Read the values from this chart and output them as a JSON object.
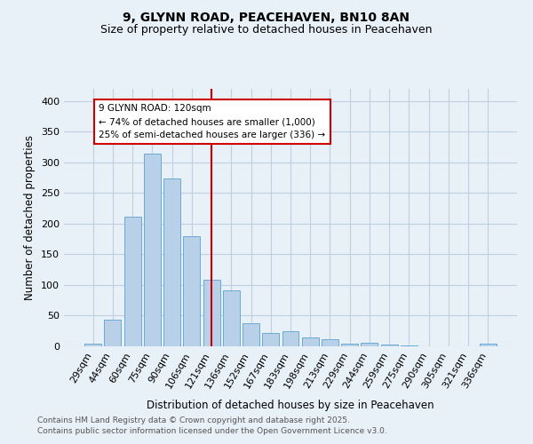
{
  "title": "9, GLYNN ROAD, PEACEHAVEN, BN10 8AN",
  "subtitle": "Size of property relative to detached houses in Peacehaven",
  "xlabel": "Distribution of detached houses by size in Peacehaven",
  "ylabel": "Number of detached properties",
  "categories": [
    "29sqm",
    "44sqm",
    "60sqm",
    "75sqm",
    "90sqm",
    "106sqm",
    "121sqm",
    "136sqm",
    "152sqm",
    "167sqm",
    "183sqm",
    "198sqm",
    "213sqm",
    "229sqm",
    "244sqm",
    "259sqm",
    "275sqm",
    "290sqm",
    "305sqm",
    "321sqm",
    "336sqm"
  ],
  "values": [
    5,
    44,
    211,
    315,
    274,
    180,
    109,
    91,
    37,
    22,
    24,
    14,
    12,
    4,
    6,
    3,
    1,
    0,
    0,
    0,
    4
  ],
  "bar_color": "#b8d0e8",
  "bar_edge_color": "#6aaad4",
  "vline_color": "#cc0000",
  "vline_x": 6.5,
  "annotation_title": "9 GLYNN ROAD: 120sqm",
  "annotation_line1": "← 74% of detached houses are smaller (1,000)",
  "annotation_line2": "25% of semi-detached houses are larger (336) →",
  "annotation_box_color": "#cc0000",
  "annotation_bg": "#ffffff",
  "ylim": [
    0,
    420
  ],
  "yticks": [
    0,
    50,
    100,
    150,
    200,
    250,
    300,
    350,
    400
  ],
  "grid_color": "#c0d0e0",
  "bg_color": "#e8f0f8",
  "footer1": "Contains HM Land Registry data © Crown copyright and database right 2025.",
  "footer2": "Contains public sector information licensed under the Open Government Licence v3.0."
}
